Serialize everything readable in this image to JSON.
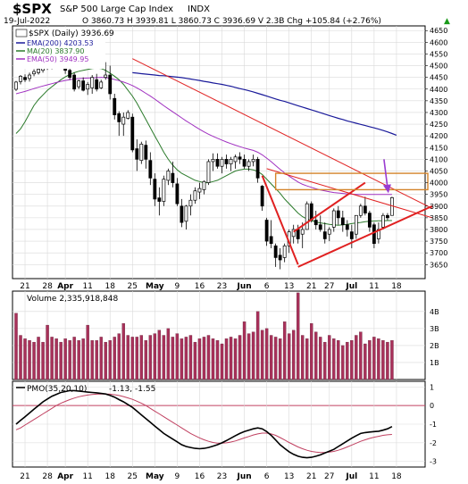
{
  "header": {
    "symbol": "$SPX",
    "name": "S&P 500 Large Cap Index",
    "exchange": "INDX",
    "date": "19-Jul-2022",
    "ohlc": "O 3860.73  H 3939.81  L 3860.73  C 3936.69  V 2.3B  Chg +105.84 (+2.76%)",
    "ohlc_arrow": "▲"
  },
  "colors": {
    "price_panel_bg": "#ffffff",
    "border": "#000000",
    "grid": "#d9d9d9",
    "ema200": "#1a1a9a",
    "ma20": "#2a7a2a",
    "ema50": "#a030c0",
    "trend_red": "#e02020",
    "resistance_box": "#d4842a",
    "arrow": "#9a3cd0",
    "volume_bar": "#a8315a",
    "pmo_line": "#000000",
    "pmo_signal": "#c04060",
    "pmo_zero": "#c04060"
  },
  "chart_data": [
    {
      "type": "candlestick",
      "title": "$SPX (Daily) 3936.69",
      "legend": [
        {
          "name": "EMA(200) 4203.53",
          "color": "#1a1a9a"
        },
        {
          "name": "MA(20) 3837.90",
          "color": "#2a7a2a"
        },
        {
          "name": "EMA(50) 3949.95",
          "color": "#a030c0"
        }
      ],
      "legend_placement": "top-left",
      "grid": true,
      "ylim": [
        3590,
        4670
      ],
      "y_ticks": [
        3650,
        3700,
        3750,
        3800,
        3850,
        3900,
        3950,
        4000,
        4050,
        4100,
        4150,
        4200,
        4250,
        4300,
        4350,
        4400,
        4450,
        4500,
        4550,
        4600,
        4650
      ],
      "x_tick_labels": [
        "21",
        "28",
        "Apr",
        "11",
        "18",
        "25",
        "May",
        "9",
        "16",
        "23",
        "Jun",
        "6",
        "13",
        "21",
        "27",
        "Jul",
        "11",
        "18"
      ],
      "x_tick_positions": [
        2,
        7,
        11,
        16,
        21,
        26,
        31,
        36,
        41,
        46,
        51,
        56,
        61,
        66,
        70,
        75,
        80,
        85
      ],
      "candles": [
        [
          4399,
          4435,
          4392,
          4430
        ],
        [
          4432,
          4460,
          4420,
          4455
        ],
        [
          4450,
          4463,
          4430,
          4440
        ],
        [
          4445,
          4470,
          4432,
          4460
        ],
        [
          4465,
          4485,
          4455,
          4475
        ],
        [
          4470,
          4495,
          4462,
          4485
        ],
        [
          4480,
          4510,
          4470,
          4500
        ],
        [
          4495,
          4520,
          4482,
          4505
        ],
        [
          4495,
          4525,
          4485,
          4510
        ],
        [
          4520,
          4545,
          4510,
          4535
        ],
        [
          4530,
          4545,
          4490,
          4495
        ],
        [
          4500,
          4512,
          4465,
          4480
        ],
        [
          4480,
          4495,
          4440,
          4450
        ],
        [
          4460,
          4470,
          4390,
          4400
        ],
        [
          4410,
          4440,
          4400,
          4435
        ],
        [
          4435,
          4450,
          4390,
          4395
        ],
        [
          4400,
          4430,
          4375,
          4420
        ],
        [
          4405,
          4460,
          4380,
          4450
        ],
        [
          4440,
          4465,
          4390,
          4400
        ],
        [
          4405,
          4440,
          4400,
          4430
        ],
        [
          4450,
          4515,
          4440,
          4460
        ],
        [
          4460,
          4500,
          4355,
          4380
        ],
        [
          4360,
          4380,
          4270,
          4290
        ],
        [
          4295,
          4305,
          4200,
          4260
        ],
        [
          4250,
          4300,
          4200,
          4280
        ],
        [
          4275,
          4310,
          4270,
          4300
        ],
        [
          4280,
          4295,
          4130,
          4140
        ],
        [
          4145,
          4185,
          4050,
          4100
        ],
        [
          4095,
          4175,
          4080,
          4165
        ],
        [
          4160,
          4180,
          4060,
          4100
        ],
        [
          4095,
          4130,
          3990,
          4020
        ],
        [
          4015,
          4040,
          3900,
          3930
        ],
        [
          3935,
          3980,
          3860,
          3920
        ],
        [
          3920,
          4030,
          3900,
          4015
        ],
        [
          4010,
          4060,
          3990,
          4050
        ],
        [
          4040,
          4090,
          3980,
          4000
        ],
        [
          3995,
          4020,
          3900,
          3910
        ],
        [
          3900,
          3930,
          3810,
          3830
        ],
        [
          3835,
          3905,
          3800,
          3900
        ],
        [
          3900,
          3950,
          3860,
          3925
        ],
        [
          3925,
          3980,
          3910,
          3965
        ],
        [
          3960,
          4000,
          3930,
          3975
        ],
        [
          3970,
          4010,
          3950,
          4005
        ],
        [
          4000,
          4100,
          3990,
          4090
        ],
        [
          4090,
          4125,
          4050,
          4100
        ],
        [
          4100,
          4125,
          4060,
          4070
        ],
        [
          4070,
          4110,
          4040,
          4100
        ],
        [
          4100,
          4120,
          4060,
          4080
        ],
        [
          4080,
          4110,
          4050,
          4100
        ],
        [
          4090,
          4120,
          4060,
          4110
        ],
        [
          4110,
          4130,
          4080,
          4100
        ],
        [
          4100,
          4120,
          4060,
          4070
        ],
        [
          4070,
          4100,
          4050,
          4090
        ],
        [
          4090,
          4120,
          4070,
          4100
        ],
        [
          4100,
          4110,
          4000,
          4020
        ],
        [
          3985,
          3990,
          3880,
          3900
        ],
        [
          3840,
          3850,
          3730,
          3750
        ],
        [
          3770,
          3840,
          3720,
          3740
        ],
        [
          3730,
          3740,
          3640,
          3680
        ],
        [
          3690,
          3720,
          3630,
          3670
        ],
        [
          3680,
          3740,
          3660,
          3730
        ],
        [
          3730,
          3800,
          3700,
          3790
        ],
        [
          3770,
          3820,
          3740,
          3800
        ],
        [
          3800,
          3820,
          3740,
          3760
        ],
        [
          3780,
          3830,
          3720,
          3800
        ],
        [
          3800,
          3920,
          3800,
          3910
        ],
        [
          3910,
          3920,
          3830,
          3840
        ],
        [
          3840,
          3880,
          3800,
          3820
        ],
        [
          3820,
          3860,
          3790,
          3800
        ],
        [
          3790,
          3830,
          3740,
          3760
        ],
        [
          3780,
          3810,
          3750,
          3800
        ],
        [
          3810,
          3890,
          3790,
          3880
        ],
        [
          3880,
          3900,
          3820,
          3850
        ],
        [
          3850,
          3880,
          3790,
          3820
        ],
        [
          3820,
          3840,
          3770,
          3800
        ],
        [
          3790,
          3820,
          3720,
          3760
        ],
        [
          3780,
          3860,
          3760,
          3860
        ],
        [
          3860,
          3910,
          3850,
          3900
        ],
        [
          3900,
          3940,
          3860,
          3870
        ],
        [
          3870,
          3880,
          3790,
          3810
        ],
        [
          3820,
          3830,
          3720,
          3740
        ],
        [
          3760,
          3830,
          3740,
          3800
        ],
        [
          3810,
          3870,
          3800,
          3860
        ],
        [
          3860,
          3870,
          3840,
          3850
        ],
        [
          3860,
          3940,
          3860,
          3936
        ]
      ],
      "ema200": [
        4470,
        4468,
        4466,
        4464,
        4462,
        4460,
        4458,
        4457,
        4455,
        4453,
        4451,
        4449,
        4446,
        4443,
        4440,
        4437,
        4433,
        4430,
        4426,
        4423,
        4420,
        4416,
        4412,
        4407,
        4402,
        4398,
        4393,
        4388,
        4382,
        4376,
        4370,
        4364,
        4358,
        4352,
        4347,
        4341,
        4335,
        4329,
        4323,
        4317,
        4311,
        4305,
        4299,
        4293,
        4287,
        4281,
        4275,
        4270,
        4264,
        4259,
        4254,
        4249,
        4244,
        4239,
        4234,
        4229,
        4223,
        4217,
        4210,
        4203
      ],
      "ema200_start": 26,
      "ma20": [
        4210,
        4230,
        4260,
        4295,
        4330,
        4355,
        4375,
        4395,
        4410,
        4425,
        4440,
        4452,
        4462,
        4470,
        4476,
        4480,
        4484,
        4488,
        4490,
        4488,
        4480,
        4468,
        4455,
        4440,
        4420,
        4395,
        4370,
        4340,
        4305,
        4270,
        4235,
        4200,
        4165,
        4130,
        4100,
        4075,
        4055,
        4040,
        4030,
        4020,
        4010,
        4005,
        4000,
        4000,
        4005,
        4010,
        4020,
        4030,
        4040,
        4050,
        4055,
        4058,
        4058,
        4055,
        4048,
        4035,
        4015,
        3995,
        3975,
        3955,
        3930,
        3910,
        3890,
        3870,
        3855,
        3845,
        3838,
        3832,
        3828,
        3825,
        3822,
        3820,
        3818,
        3820,
        3822,
        3825,
        3828,
        3830,
        3833,
        3835,
        3836,
        3837,
        3837,
        3838,
        3838
      ],
      "ema50": [
        4380,
        4385,
        4390,
        4396,
        4402,
        4408,
        4413,
        4418,
        4423,
        4428,
        4433,
        4437,
        4440,
        4443,
        4445,
        4446,
        4447,
        4448,
        4449,
        4450,
        4449,
        4446,
        4441,
        4436,
        4430,
        4423,
        4415,
        4405,
        4394,
        4382,
        4370,
        4357,
        4343,
        4329,
        4316,
        4303,
        4290,
        4277,
        4264,
        4252,
        4240,
        4228,
        4217,
        4207,
        4198,
        4190,
        4182,
        4174,
        4167,
        4160,
        4154,
        4148,
        4143,
        4138,
        4130,
        4119,
        4105,
        4090,
        4073,
        4057,
        4042,
        4028,
        4015,
        4003,
        3993,
        3986,
        3980,
        3974,
        3969,
        3965,
        3961,
        3958,
        3956,
        3954,
        3952,
        3951,
        3950,
        3950,
        3950,
        3950,
        3950,
        3950,
        3950,
        3950,
        3950
      ],
      "annotations": [
        {
          "kind": "line",
          "color": "#e02020",
          "from": [
            26,
            4530
          ],
          "to": [
            93,
            3890
          ]
        },
        {
          "kind": "line",
          "color": "#e02020",
          "from": [
            56,
            4060
          ],
          "to": [
            93,
            3850
          ]
        },
        {
          "kind": "line",
          "color": "#e02020",
          "from": [
            55,
            4030
          ],
          "to": [
            63,
            3650
          ],
          "width": 2
        },
        {
          "kind": "line",
          "color": "#e02020",
          "from": [
            62,
            3790
          ],
          "to": [
            78,
            4000
          ],
          "width": 2
        },
        {
          "kind": "line",
          "color": "#e02020",
          "from": [
            63,
            3640
          ],
          "to": [
            93,
            3900
          ],
          "width": 2
        },
        {
          "kind": "box",
          "color": "#d4842a",
          "x": [
            58,
            92
          ],
          "y": [
            3970,
            4040
          ]
        },
        {
          "kind": "arrow",
          "color": "#9a3cd0",
          "x": 83,
          "y_from": 4100,
          "y_to": 3955
        }
      ]
    },
    {
      "type": "bar",
      "title": "Volume 2,335,918,848",
      "ylim": [
        0,
        5.2
      ],
      "y_ticks": [
        1,
        2,
        3,
        4
      ],
      "y_tick_labels": [
        "1B",
        "2B",
        "3B",
        "4B"
      ],
      "values": [
        3.9,
        2.6,
        2.4,
        2.3,
        2.2,
        2.5,
        2.2,
        3.2,
        2.5,
        2.4,
        2.2,
        2.4,
        2.3,
        2.5,
        2.3,
        2.4,
        3.2,
        2.3,
        2.3,
        2.5,
        2.2,
        2.3,
        2.5,
        2.7,
        3.3,
        2.6,
        2.5,
        2.5,
        2.6,
        2.3,
        2.6,
        2.7,
        2.9,
        2.6,
        3.0,
        2.5,
        2.7,
        2.4,
        2.5,
        2.6,
        2.2,
        2.4,
        2.5,
        2.6,
        2.4,
        2.3,
        2.1,
        2.4,
        2.5,
        2.4,
        2.6,
        3.4,
        2.7,
        2.8,
        4.0,
        2.9,
        3.0,
        2.6,
        2.5,
        2.4,
        3.4,
        2.7,
        2.9,
        5.1,
        2.6,
        2.4,
        3.3,
        2.8,
        2.5,
        2.2,
        2.6,
        2.4,
        2.3,
        2.0,
        2.2,
        2.3,
        2.6,
        2.8,
        2.1,
        2.3,
        2.5,
        2.4,
        2.3,
        2.2,
        2.3
      ]
    },
    {
      "type": "line",
      "title": "PMO(35,20,10)",
      "title_values": "-1.13, -1.55",
      "ylim": [
        -3.3,
        1.3
      ],
      "y_ticks": [
        -3,
        -2,
        -1,
        0,
        1
      ],
      "zero_line": true,
      "series": [
        {
          "name": "PMO(35,20,10)",
          "color": "#000000",
          "values": [
            -1.0,
            -0.8,
            -0.6,
            -0.4,
            -0.2,
            0.0,
            0.2,
            0.35,
            0.5,
            0.6,
            0.7,
            0.75,
            0.8,
            0.8,
            0.78,
            0.75,
            0.72,
            0.7,
            0.68,
            0.65,
            0.62,
            0.55,
            0.45,
            0.32,
            0.2,
            0.05,
            -0.1,
            -0.3,
            -0.5,
            -0.7,
            -0.9,
            -1.1,
            -1.3,
            -1.5,
            -1.65,
            -1.8,
            -1.95,
            -2.1,
            -2.2,
            -2.25,
            -2.3,
            -2.32,
            -2.3,
            -2.25,
            -2.18,
            -2.1,
            -2.0,
            -1.88,
            -1.75,
            -1.62,
            -1.5,
            -1.4,
            -1.32,
            -1.25,
            -1.2,
            -1.25,
            -1.4,
            -1.6,
            -1.85,
            -2.1,
            -2.3,
            -2.48,
            -2.62,
            -2.72,
            -2.78,
            -2.8,
            -2.78,
            -2.72,
            -2.65,
            -2.55,
            -2.45,
            -2.35,
            -2.2,
            -2.05,
            -1.9,
            -1.75,
            -1.62,
            -1.5,
            -1.45,
            -1.42,
            -1.4,
            -1.38,
            -1.32,
            -1.25,
            -1.13
          ]
        },
        {
          "name": "Signal",
          "color": "#c04060",
          "values": [
            -1.3,
            -1.2,
            -1.05,
            -0.9,
            -0.75,
            -0.6,
            -0.45,
            -0.3,
            -0.15,
            0.0,
            0.12,
            0.22,
            0.32,
            0.4,
            0.47,
            0.52,
            0.56,
            0.59,
            0.61,
            0.62,
            0.62,
            0.61,
            0.58,
            0.54,
            0.48,
            0.41,
            0.33,
            0.23,
            0.12,
            0.0,
            -0.15,
            -0.3,
            -0.45,
            -0.6,
            -0.75,
            -0.9,
            -1.05,
            -1.2,
            -1.35,
            -1.5,
            -1.62,
            -1.74,
            -1.84,
            -1.92,
            -1.98,
            -2.02,
            -2.02,
            -2.0,
            -1.96,
            -1.9,
            -1.82,
            -1.74,
            -1.66,
            -1.58,
            -1.52,
            -1.48,
            -1.48,
            -1.52,
            -1.6,
            -1.72,
            -1.85,
            -1.98,
            -2.1,
            -2.22,
            -2.32,
            -2.4,
            -2.46,
            -2.5,
            -2.52,
            -2.52,
            -2.5,
            -2.46,
            -2.4,
            -2.32,
            -2.22,
            -2.12,
            -2.02,
            -1.92,
            -1.84,
            -1.76,
            -1.7,
            -1.65,
            -1.6,
            -1.57,
            -1.55
          ]
        }
      ]
    }
  ]
}
